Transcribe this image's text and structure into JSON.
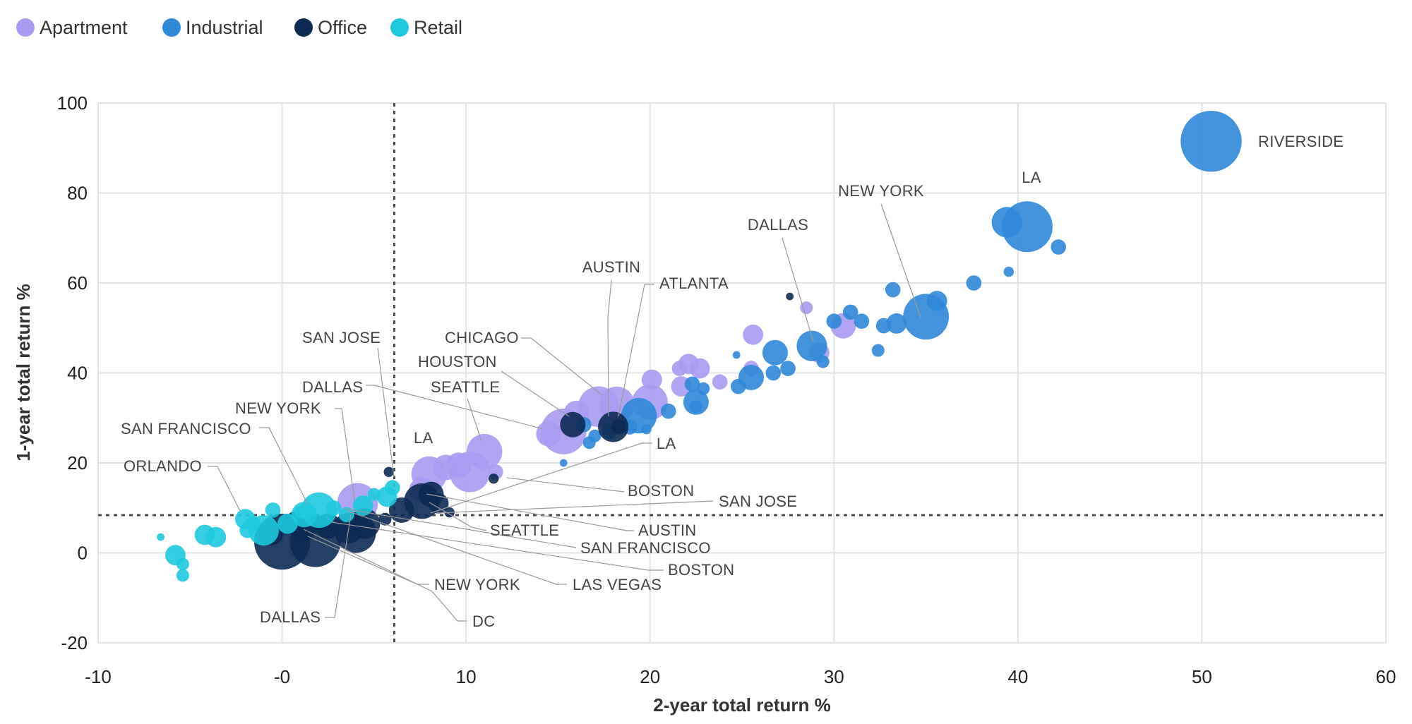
{
  "chart_data": {
    "type": "scatter",
    "xlabel": "2-year total return %",
    "ylabel": "1-year total return %",
    "xlim": [
      -10,
      60
    ],
    "ylim": [
      -20,
      100
    ],
    "xticks": [
      -10,
      0,
      10,
      20,
      30,
      40,
      50,
      60
    ],
    "xtick_labels": [
      "-10",
      "-0",
      "10",
      "20",
      "30",
      "40",
      "50",
      "60"
    ],
    "yticks": [
      -20,
      0,
      20,
      40,
      60,
      80,
      100
    ],
    "ytick_labels": [
      "-20",
      "0",
      "20",
      "40",
      "60",
      "80",
      "100"
    ],
    "grid": true,
    "legend_position": "top-left",
    "reference_lines": {
      "x": 6.1,
      "y": 8.4
    },
    "series": [
      {
        "name": "Apartment",
        "color": "#a99bf2",
        "points": [
          [
            15.3,
            27.0,
            9
          ],
          [
            17.2,
            32.5,
            8
          ],
          [
            18.2,
            33.0,
            7
          ],
          [
            20.0,
            33.5,
            7
          ],
          [
            14.5,
            26.5,
            5
          ],
          [
            16.0,
            31.0,
            5
          ],
          [
            11.0,
            22.5,
            7
          ],
          [
            10.2,
            18.0,
            8
          ],
          [
            8.0,
            17.5,
            7
          ],
          [
            8.9,
            19.0,
            5
          ],
          [
            9.6,
            19.5,
            5
          ],
          [
            7.6,
            14.0,
            5
          ],
          [
            11.6,
            18.0,
            3
          ],
          [
            4.1,
            11.0,
            8
          ],
          [
            20.1,
            38.5,
            4
          ],
          [
            22.1,
            42.0,
            4
          ],
          [
            22.7,
            41.0,
            4
          ],
          [
            21.7,
            37.0,
            4
          ],
          [
            21.6,
            41.0,
            3
          ],
          [
            23.8,
            38.0,
            3
          ],
          [
            25.5,
            41.0,
            3
          ],
          [
            25.6,
            48.5,
            4
          ],
          [
            28.5,
            54.5,
            2.5
          ],
          [
            30.5,
            50.5,
            5
          ],
          [
            29.2,
            44.5,
            4
          ]
        ]
      },
      {
        "name": "Industrial",
        "color": "#2f88d8",
        "points": [
          [
            50.5,
            91.5,
            12
          ],
          [
            40.5,
            72.5,
            10
          ],
          [
            39.4,
            73.5,
            6
          ],
          [
            42.2,
            68.0,
            3
          ],
          [
            39.5,
            62.5,
            2
          ],
          [
            37.6,
            60.0,
            3
          ],
          [
            35.0,
            52.5,
            9
          ],
          [
            35.6,
            56.0,
            4
          ],
          [
            33.4,
            51.0,
            4
          ],
          [
            33.2,
            58.5,
            3
          ],
          [
            32.7,
            50.5,
            3
          ],
          [
            32.4,
            45.0,
            2.5
          ],
          [
            31.5,
            51.5,
            3
          ],
          [
            30.0,
            51.5,
            3
          ],
          [
            30.9,
            53.5,
            3
          ],
          [
            28.8,
            46.0,
            6
          ],
          [
            29.4,
            42.5,
            2.5
          ],
          [
            26.8,
            44.5,
            5
          ],
          [
            27.5,
            41.0,
            3
          ],
          [
            26.7,
            40.0,
            3
          ],
          [
            25.5,
            39.0,
            5
          ],
          [
            24.8,
            37.0,
            3
          ],
          [
            24.7,
            44.0,
            1.5
          ],
          [
            22.5,
            33.5,
            5
          ],
          [
            22.9,
            36.5,
            2.5
          ],
          [
            22.5,
            32.5,
            2.5
          ],
          [
            22.3,
            37.5,
            3
          ],
          [
            21.0,
            31.5,
            3
          ],
          [
            19.4,
            30.5,
            7
          ],
          [
            18.9,
            28.0,
            3
          ],
          [
            19.8,
            27.5,
            2
          ],
          [
            17.8,
            27.0,
            3
          ],
          [
            17.0,
            26.0,
            2.5
          ],
          [
            16.7,
            24.5,
            2.5
          ],
          [
            16.4,
            28.5,
            3
          ],
          [
            15.3,
            20.0,
            1.5
          ]
        ]
      },
      {
        "name": "Office",
        "color": "#0d2a54",
        "points": [
          [
            0.0,
            2.5,
            11
          ],
          [
            1.8,
            2.5,
            10
          ],
          [
            4.0,
            4.5,
            8
          ],
          [
            4.5,
            6.5,
            6
          ],
          [
            3.6,
            5.5,
            6
          ],
          [
            2.5,
            6.0,
            5
          ],
          [
            1.2,
            5.5,
            5
          ],
          [
            -0.6,
            4.5,
            5
          ],
          [
            0.8,
            6.5,
            5
          ],
          [
            7.6,
            11.5,
            7
          ],
          [
            8.1,
            13.0,
            5
          ],
          [
            8.5,
            11.0,
            4
          ],
          [
            6.5,
            9.5,
            5
          ],
          [
            5.6,
            7.5,
            2.5
          ],
          [
            9.1,
            9.0,
            2
          ],
          [
            11.5,
            16.5,
            2
          ],
          [
            15.8,
            28.5,
            5
          ],
          [
            18.0,
            28.0,
            6
          ],
          [
            18.3,
            28.0,
            3
          ],
          [
            5.8,
            18.0,
            2
          ],
          [
            27.6,
            57.0,
            1.5
          ]
        ]
      },
      {
        "name": "Retail",
        "color": "#1dc9de",
        "points": [
          [
            -6.6,
            3.5,
            1.5
          ],
          [
            -5.8,
            -0.5,
            4
          ],
          [
            -5.4,
            -2.5,
            2.5
          ],
          [
            -5.4,
            -5.0,
            2.5
          ],
          [
            -4.2,
            4.0,
            4
          ],
          [
            -3.6,
            3.5,
            4
          ],
          [
            -2.0,
            7.5,
            4
          ],
          [
            -1.6,
            6.5,
            3
          ],
          [
            -1.9,
            5.0,
            3
          ],
          [
            -1.0,
            5.0,
            6
          ],
          [
            -0.5,
            9.5,
            3
          ],
          [
            0.3,
            6.5,
            4
          ],
          [
            1.2,
            8.5,
            5
          ],
          [
            2.0,
            9.5,
            7
          ],
          [
            2.8,
            10.0,
            3
          ],
          [
            3.5,
            8.5,
            3
          ],
          [
            4.4,
            10.5,
            4
          ],
          [
            5.0,
            13.0,
            2.5
          ],
          [
            5.7,
            12.5,
            4
          ],
          [
            6.0,
            14.5,
            3
          ],
          [
            1.0,
            9.0,
            2.5
          ]
        ]
      }
    ],
    "annotations": [
      {
        "label": "RIVERSIDE"
      },
      {
        "label": "LA"
      },
      {
        "label": "NEW YORK"
      },
      {
        "label": "DALLAS"
      },
      {
        "label": "AUSTIN"
      },
      {
        "label": "ATLANTA"
      },
      {
        "label": "CHICAGO"
      },
      {
        "label": "HOUSTON"
      },
      {
        "label": "SEATTLE"
      },
      {
        "label": "SAN JOSE"
      },
      {
        "label": "DALLAS"
      },
      {
        "label": "NEW YORK"
      },
      {
        "label": "SAN FRANCISCO"
      },
      {
        "label": "ORLANDO"
      },
      {
        "label": "LA"
      },
      {
        "label": "LA"
      },
      {
        "label": "BOSTON"
      },
      {
        "label": "SAN JOSE"
      },
      {
        "label": "SEATTLE"
      },
      {
        "label": "AUSTIN"
      },
      {
        "label": "SAN FRANCISCO"
      },
      {
        "label": "BOSTON"
      },
      {
        "label": "LAS VEGAS"
      },
      {
        "label": "NEW YORK"
      },
      {
        "label": "DC"
      },
      {
        "label": "DALLAS"
      }
    ]
  }
}
